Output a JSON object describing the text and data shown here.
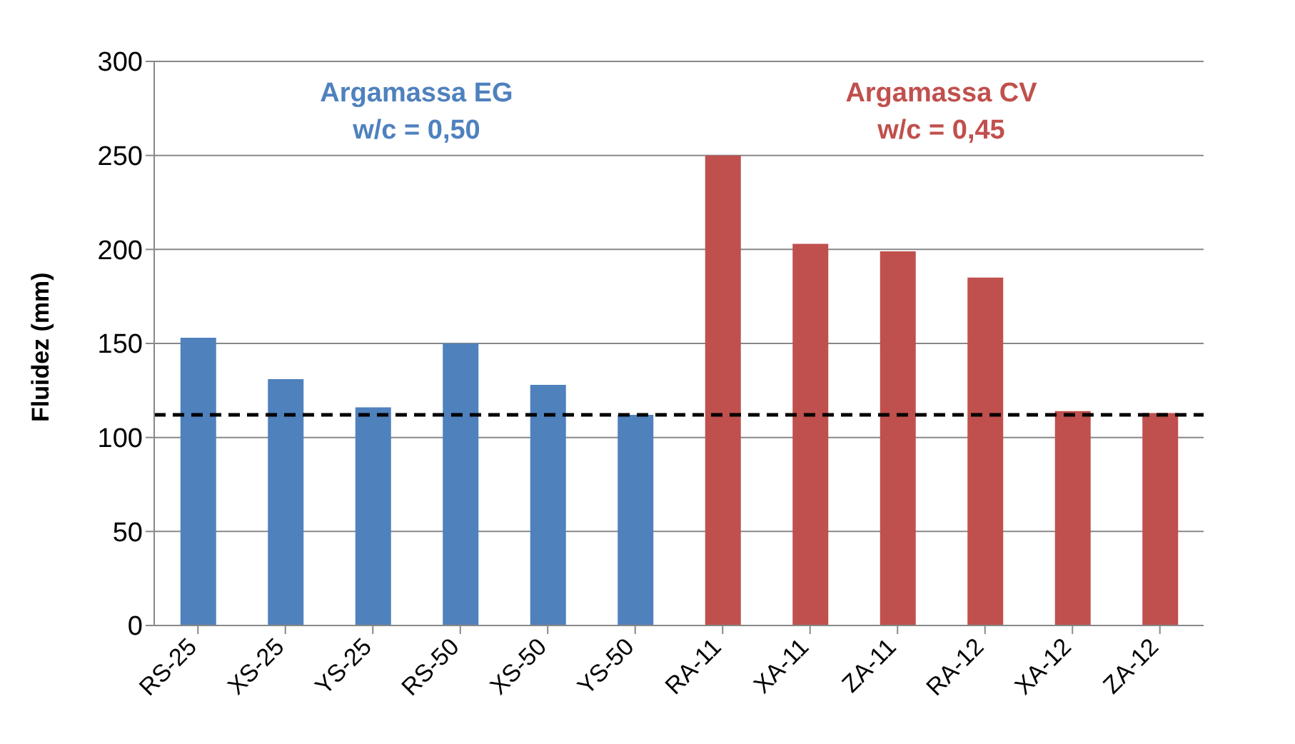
{
  "chart_data": {
    "type": "bar",
    "ylabel": "Fluidez (mm)",
    "categories": [
      "RS-25",
      "XS-25",
      "YS-25",
      "RS-50",
      "XS-50",
      "YS-50",
      "RA-11",
      "XA-11",
      "ZA-11",
      "RA-12",
      "XA-12",
      "ZA-12"
    ],
    "series": [
      {
        "name": "Argamassa EG w/c = 0,50",
        "color": "#4f81bd",
        "values": [
          153,
          131,
          116,
          150,
          128,
          112,
          null,
          null,
          null,
          null,
          null,
          null
        ]
      },
      {
        "name": "Argamassa CV w/c = 0,45",
        "color": "#c0504d",
        "values": [
          null,
          null,
          null,
          null,
          null,
          null,
          250,
          203,
          199,
          185,
          114,
          113
        ]
      }
    ],
    "stacked": true,
    "ylim": [
      0,
      300
    ],
    "yticks": [
      0,
      50,
      100,
      150,
      200,
      250,
      300
    ],
    "grid": "y",
    "legend": false,
    "ref_lines": [
      {
        "axis": "y",
        "value": 112,
        "color": "#000000",
        "line_style": "dashed"
      }
    ]
  }
}
